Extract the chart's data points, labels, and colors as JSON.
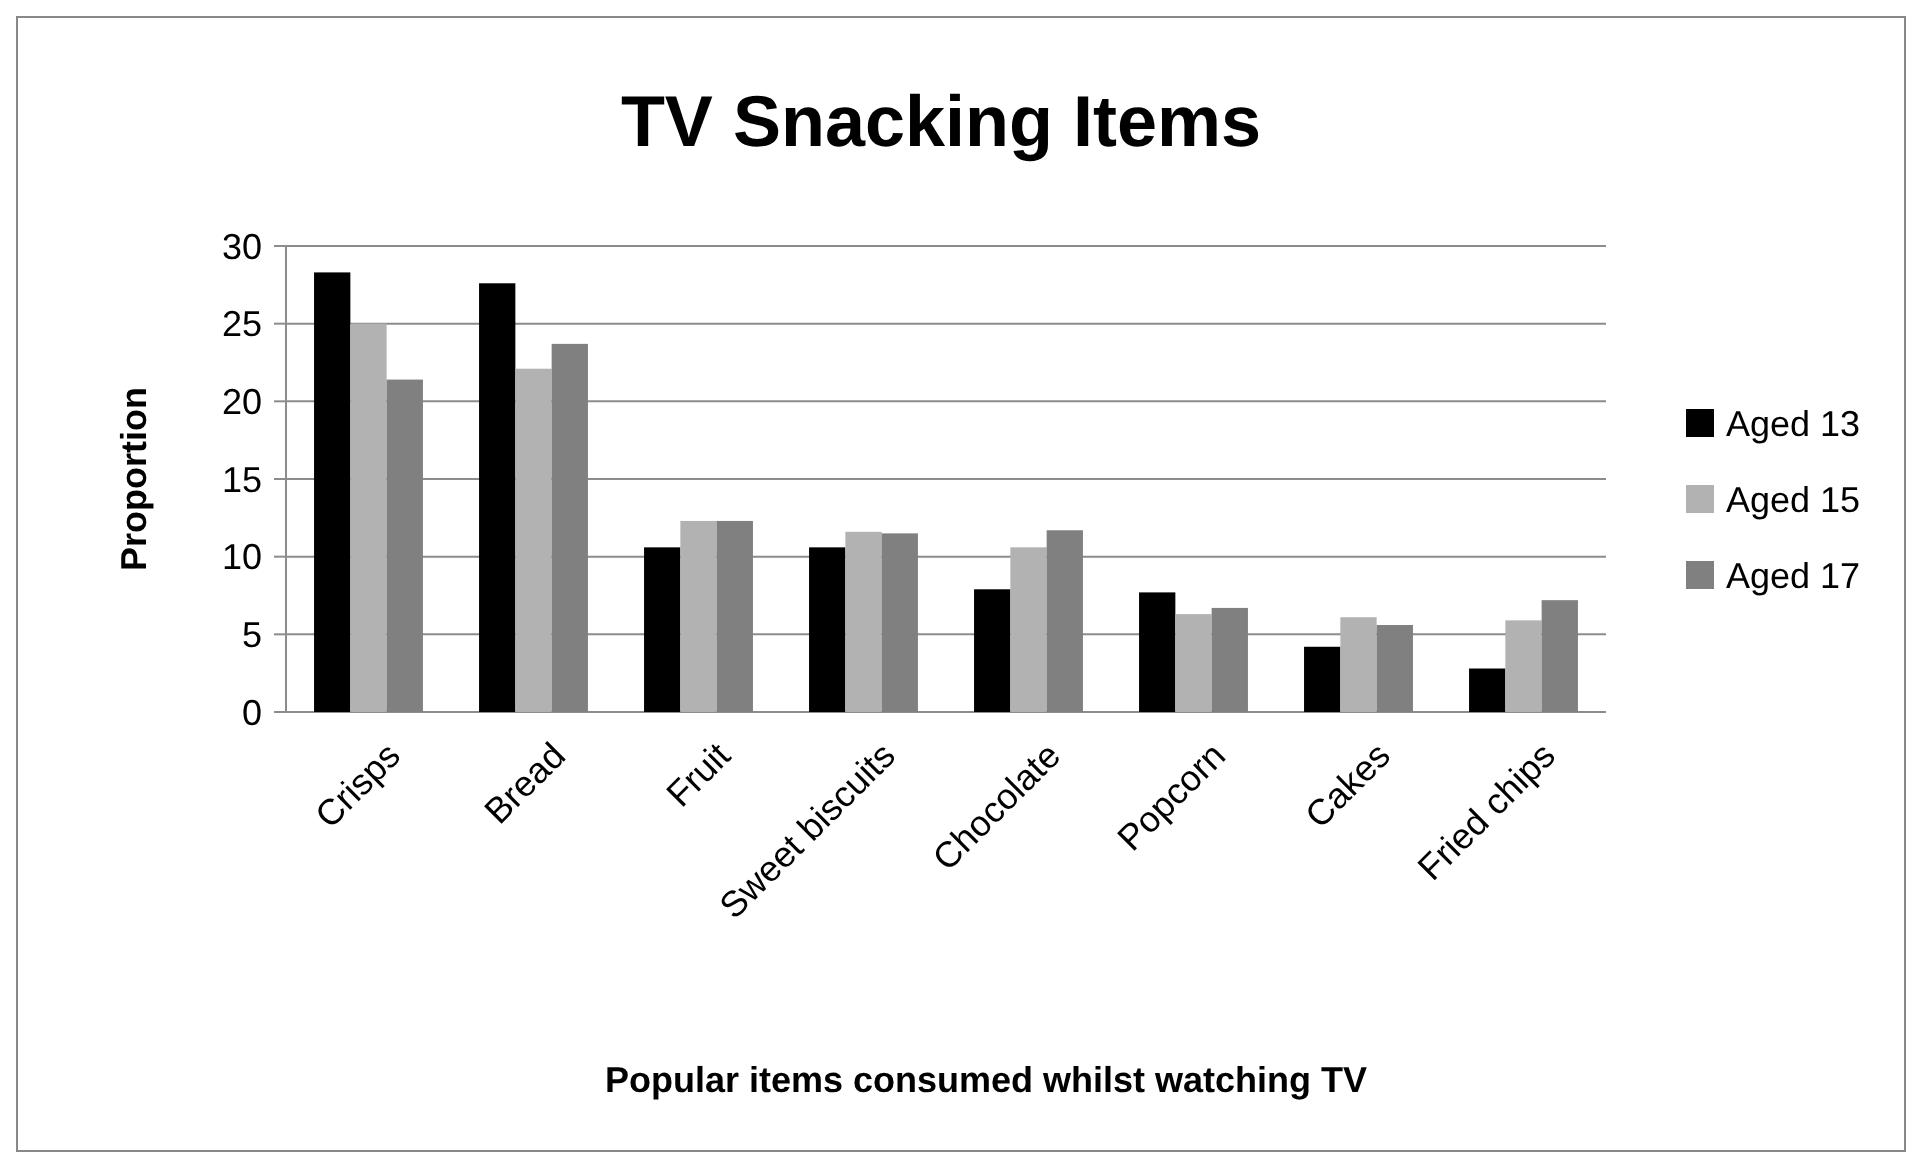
{
  "chart_data": {
    "type": "bar",
    "title": "TV Snacking Items",
    "xlabel": "Popular items consumed whilst watching TV",
    "ylabel": "Proportion",
    "categories": [
      "Crisps",
      "Bread",
      "Fruit",
      "Sweet biscuits",
      "Chocolate",
      "Popcorn",
      "Cakes",
      "Fried chips"
    ],
    "series": [
      {
        "name": "Aged 13",
        "color": "#000000",
        "values": [
          28.3,
          27.6,
          10.6,
          10.6,
          7.9,
          7.7,
          4.2,
          2.8
        ]
      },
      {
        "name": "Aged 15",
        "color": "#b2b2b2",
        "values": [
          25,
          22.1,
          12.3,
          11.6,
          10.6,
          6.3,
          6.1,
          5.9
        ]
      },
      {
        "name": "Aged 17",
        "color": "#808080",
        "values": [
          21.4,
          23.7,
          12.3,
          11.5,
          11.7,
          6.7,
          5.6,
          7.2
        ]
      }
    ],
    "ylim": [
      0,
      30
    ],
    "yticks": [
      0,
      5,
      10,
      15,
      20,
      25,
      30
    ],
    "grid": "y",
    "legend": "right"
  }
}
